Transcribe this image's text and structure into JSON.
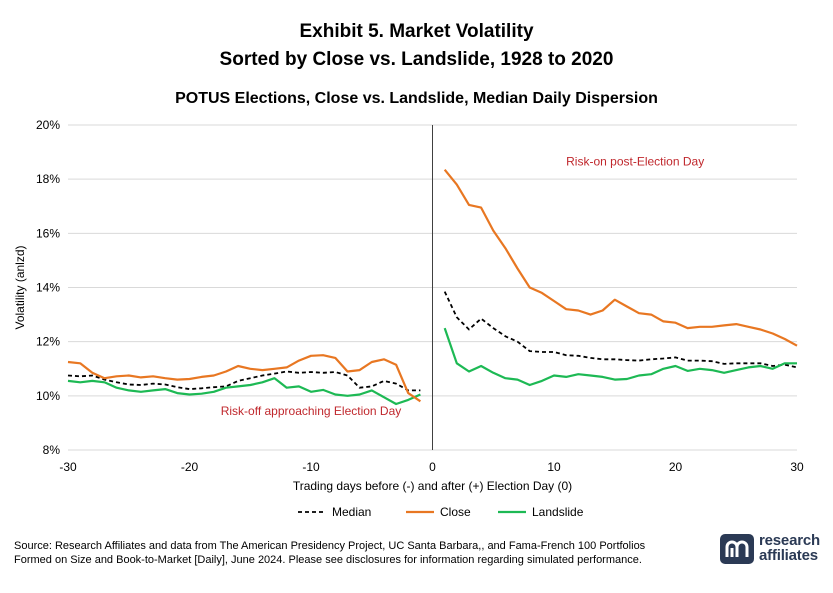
{
  "header": {
    "title_line1": "Exhibit 5. Market Volatility",
    "title_line2": "Sorted by Close vs. Landslide, 1928 to 2020",
    "subtitle": "POTUS Elections, Close vs. Landslide, Median Daily Dispersion"
  },
  "footer": {
    "source": "Source: Research Affiliates and data from The American Presidency Project, UC Santa Barbara,, and Fama-French 100 Portfolios Formed on Size and Book-to-Market [Daily], June 2024. Please see disclosures for information regarding simulated performance.",
    "logo_line1": "research",
    "logo_line2": "affiliates"
  },
  "colors": {
    "median": "#000000",
    "close": "#E87722",
    "landslide": "#1DB954",
    "annotation": "#C0282D",
    "logo": "#2B3A55"
  },
  "chart_data": {
    "type": "line",
    "title": "POTUS Elections, Close vs. Landslide, Median Daily Dispersion",
    "xlabel": "Trading days before (-) and after (+) Election Day (0)",
    "ylabel": "Volatility (anlzd)",
    "xlim": [
      -30,
      30
    ],
    "ylim": [
      8,
      20
    ],
    "xticks": [
      -30,
      -20,
      -10,
      0,
      10,
      20,
      30
    ],
    "xtick_labels": [
      "-30",
      "-20",
      "-10",
      "0",
      "10",
      "20",
      "30"
    ],
    "yticks": [
      8,
      10,
      12,
      14,
      16,
      18,
      20
    ],
    "ytick_labels": [
      "8%",
      "10%",
      "12%",
      "14%",
      "16%",
      "18%",
      "20%"
    ],
    "grid": "horizontal",
    "legend_position": "bottom",
    "vertical_marker_x": 0,
    "annotations": [
      {
        "text": "Risk-off approaching Election Day",
        "x": -10,
        "y": 9.3
      },
      {
        "text": "Risk-on post-Election Day",
        "x": 11,
        "y": 18.5
      }
    ],
    "series": [
      {
        "name": "Median",
        "style": "dashed",
        "pre_x": [
          -30,
          -29,
          -28,
          -27,
          -26,
          -25,
          -24,
          -23,
          -22,
          -21,
          -20,
          -19,
          -18,
          -17,
          -16,
          -15,
          -14,
          -13,
          -12,
          -11,
          -10,
          -9,
          -8,
          -7,
          -6,
          -5,
          -4,
          -3,
          -2,
          -1
        ],
        "pre_y": [
          10.75,
          10.72,
          10.75,
          10.6,
          10.5,
          10.42,
          10.4,
          10.45,
          10.42,
          10.32,
          10.25,
          10.28,
          10.32,
          10.35,
          10.55,
          10.65,
          10.75,
          10.82,
          10.9,
          10.85,
          10.88,
          10.85,
          10.88,
          10.75,
          10.3,
          10.35,
          10.55,
          10.45,
          10.2,
          10.2
        ],
        "post_x": [
          1,
          2,
          3,
          4,
          5,
          6,
          7,
          8,
          9,
          10,
          11,
          12,
          13,
          14,
          15,
          16,
          17,
          18,
          19,
          20,
          21,
          22,
          23,
          24,
          25,
          26,
          27,
          28,
          29,
          30
        ],
        "post_y": [
          13.85,
          12.9,
          12.45,
          12.85,
          12.5,
          12.2,
          12.0,
          11.65,
          11.62,
          11.62,
          11.5,
          11.48,
          11.4,
          11.35,
          11.35,
          11.32,
          11.3,
          11.35,
          11.38,
          11.42,
          11.3,
          11.3,
          11.28,
          11.18,
          11.2,
          11.2,
          11.2,
          11.1,
          11.15,
          11.05
        ]
      },
      {
        "name": "Close",
        "style": "solid",
        "pre_x": [
          -30,
          -29,
          -28,
          -27,
          -26,
          -25,
          -24,
          -23,
          -22,
          -21,
          -20,
          -19,
          -18,
          -17,
          -16,
          -15,
          -14,
          -13,
          -12,
          -11,
          -10,
          -9,
          -8,
          -7,
          -6,
          -5,
          -4,
          -3,
          -2,
          -1
        ],
        "pre_y": [
          11.25,
          11.2,
          10.85,
          10.65,
          10.72,
          10.75,
          10.68,
          10.72,
          10.65,
          10.6,
          10.62,
          10.7,
          10.75,
          10.9,
          11.1,
          11.0,
          10.95,
          11.0,
          11.05,
          11.3,
          11.48,
          11.5,
          11.4,
          10.9,
          10.95,
          11.25,
          11.35,
          11.15,
          10.1,
          9.8
        ],
        "post_x": [
          1,
          2,
          3,
          4,
          5,
          6,
          7,
          8,
          9,
          10,
          11,
          12,
          13,
          14,
          15,
          16,
          17,
          18,
          19,
          20,
          21,
          22,
          23,
          24,
          25,
          26,
          27,
          28,
          29,
          30
        ],
        "post_y": [
          18.35,
          17.8,
          17.05,
          16.95,
          16.1,
          15.45,
          14.7,
          14.0,
          13.8,
          13.5,
          13.2,
          13.15,
          13.0,
          13.15,
          13.55,
          13.3,
          13.05,
          13.0,
          12.75,
          12.7,
          12.5,
          12.55,
          12.55,
          12.6,
          12.65,
          12.55,
          12.45,
          12.3,
          12.1,
          11.85
        ]
      },
      {
        "name": "Landslide",
        "style": "solid",
        "pre_x": [
          -30,
          -29,
          -28,
          -27,
          -26,
          -25,
          -24,
          -23,
          -22,
          -21,
          -20,
          -19,
          -18,
          -17,
          -16,
          -15,
          -14,
          -13,
          -12,
          -11,
          -10,
          -9,
          -8,
          -7,
          -6,
          -5,
          -4,
          -3,
          -2,
          -1
        ],
        "pre_y": [
          10.55,
          10.5,
          10.55,
          10.5,
          10.3,
          10.2,
          10.15,
          10.2,
          10.25,
          10.1,
          10.05,
          10.08,
          10.15,
          10.3,
          10.35,
          10.4,
          10.5,
          10.65,
          10.3,
          10.35,
          10.15,
          10.22,
          10.05,
          10.0,
          10.05,
          10.2,
          9.95,
          9.7,
          9.85,
          10.05
        ],
        "post_x": [
          1,
          2,
          3,
          4,
          5,
          6,
          7,
          8,
          9,
          10,
          11,
          12,
          13,
          14,
          15,
          16,
          17,
          18,
          19,
          20,
          21,
          22,
          23,
          24,
          25,
          26,
          27,
          28,
          29,
          30
        ],
        "post_y": [
          12.5,
          11.2,
          10.9,
          11.1,
          10.85,
          10.65,
          10.6,
          10.4,
          10.55,
          10.75,
          10.7,
          10.8,
          10.75,
          10.7,
          10.6,
          10.62,
          10.75,
          10.8,
          11.0,
          11.1,
          10.92,
          11.0,
          10.95,
          10.85,
          10.95,
          11.05,
          11.1,
          11.0,
          11.2,
          11.2
        ]
      }
    ]
  }
}
